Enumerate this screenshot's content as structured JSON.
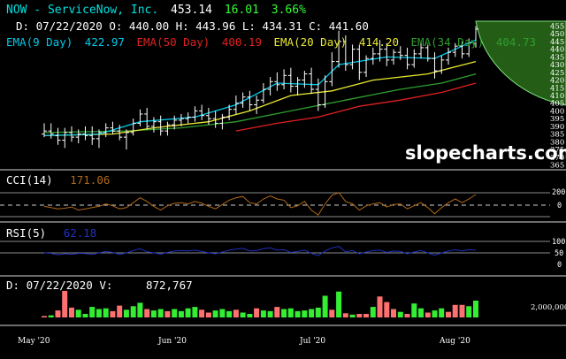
{
  "header": {
    "symbol": "NOW - ServiceNow, Inc.",
    "price": "453.14",
    "change": "16.01",
    "change_pct": "3.66%",
    "ohlc": "D: 07/22/2020 O: 440.00 H: 443.96 L: 434.31 C: 441.60",
    "ema9_label": "EMA(9 Day)",
    "ema9_value": "422.97",
    "ema50_label": "EMA(50 Day)",
    "ema50_value": "400.19",
    "ema20_label": "EMA(20 Day)",
    "ema20_value": "414.20",
    "ema34_label": "EMA(34 Day)",
    "ema34_value": "404.73"
  },
  "watermark": "slopecharts.com",
  "colors": {
    "background": "#000000",
    "symbol": "#00e0e0",
    "positive": "#33ff33",
    "candle": "#ffffff",
    "ema9": "#00c8e8",
    "ema20": "#e8e832",
    "ema34": "#2e9e2e",
    "ema50": "#e02020",
    "cci": "#b06818",
    "rsi": "#2030c0",
    "vol_up": "#33ee33",
    "vol_down": "#ff7070",
    "fib_fill": "#2a6e1a"
  },
  "cci_panel": {
    "label": "CCI(14)",
    "value": "171.06",
    "ticks": [
      "200",
      "0"
    ]
  },
  "rsi_panel": {
    "label": "RSI(5)",
    "value": "62.18",
    "ticks": [
      "100",
      "50",
      "0"
    ]
  },
  "volume_panel": {
    "label": "D: 07/22/2020 V:",
    "value": "872,767",
    "tick": "2,000,000"
  },
  "x_axis": {
    "labels": [
      "May '20",
      "Jun '20",
      "Jul '20",
      "Aug '20"
    ]
  },
  "chart_data": {
    "type": "candlestick",
    "price_axis": {
      "ticks": [
        "455",
        "450",
        "445",
        "440",
        "435",
        "430",
        "425",
        "420",
        "415",
        "410",
        "405",
        "400",
        "395",
        "390",
        "385",
        "380",
        "375",
        "370",
        "365"
      ],
      "ylim": [
        363,
        457
      ]
    },
    "bars": [
      {
        "o": 385,
        "h": 392,
        "l": 383,
        "c": 387
      },
      {
        "o": 387,
        "h": 392,
        "l": 382,
        "c": 385
      },
      {
        "o": 384,
        "h": 389,
        "l": 378,
        "c": 381
      },
      {
        "o": 381,
        "h": 389,
        "l": 376,
        "c": 386
      },
      {
        "o": 386,
        "h": 390,
        "l": 380,
        "c": 383
      },
      {
        "o": 383,
        "h": 388,
        "l": 379,
        "c": 385
      },
      {
        "o": 385,
        "h": 390,
        "l": 381,
        "c": 384
      },
      {
        "o": 384,
        "h": 390,
        "l": 378,
        "c": 382
      },
      {
        "o": 382,
        "h": 388,
        "l": 376,
        "c": 386
      },
      {
        "o": 386,
        "h": 392,
        "l": 383,
        "c": 389
      },
      {
        "o": 389,
        "h": 393,
        "l": 385,
        "c": 387
      },
      {
        "o": 387,
        "h": 391,
        "l": 381,
        "c": 383
      },
      {
        "o": 383,
        "h": 388,
        "l": 375,
        "c": 386
      },
      {
        "o": 386,
        "h": 395,
        "l": 384,
        "c": 392
      },
      {
        "o": 392,
        "h": 401,
        "l": 390,
        "c": 398
      },
      {
        "o": 398,
        "h": 402,
        "l": 388,
        "c": 390
      },
      {
        "o": 390,
        "h": 396,
        "l": 386,
        "c": 393
      },
      {
        "o": 393,
        "h": 397,
        "l": 384,
        "c": 387
      },
      {
        "o": 387,
        "h": 393,
        "l": 384,
        "c": 391
      },
      {
        "o": 391,
        "h": 397,
        "l": 388,
        "c": 394
      },
      {
        "o": 394,
        "h": 398,
        "l": 390,
        "c": 395
      },
      {
        "o": 395,
        "h": 399,
        "l": 392,
        "c": 396
      },
      {
        "o": 396,
        "h": 403,
        "l": 393,
        "c": 400
      },
      {
        "o": 400,
        "h": 404,
        "l": 394,
        "c": 397
      },
      {
        "o": 397,
        "h": 402,
        "l": 391,
        "c": 395
      },
      {
        "o": 395,
        "h": 400,
        "l": 389,
        "c": 392
      },
      {
        "o": 392,
        "h": 398,
        "l": 388,
        "c": 396
      },
      {
        "o": 396,
        "h": 404,
        "l": 394,
        "c": 401
      },
      {
        "o": 401,
        "h": 410,
        "l": 398,
        "c": 405
      },
      {
        "o": 405,
        "h": 412,
        "l": 402,
        "c": 409
      },
      {
        "o": 409,
        "h": 413,
        "l": 400,
        "c": 404
      },
      {
        "o": 404,
        "h": 410,
        "l": 398,
        "c": 407
      },
      {
        "o": 407,
        "h": 418,
        "l": 405,
        "c": 414
      },
      {
        "o": 414,
        "h": 422,
        "l": 410,
        "c": 419
      },
      {
        "o": 419,
        "h": 425,
        "l": 413,
        "c": 417
      },
      {
        "o": 417,
        "h": 427,
        "l": 414,
        "c": 423
      },
      {
        "o": 423,
        "h": 428,
        "l": 412,
        "c": 416
      },
      {
        "o": 416,
        "h": 422,
        "l": 410,
        "c": 420
      },
      {
        "o": 420,
        "h": 426,
        "l": 415,
        "c": 424
      },
      {
        "o": 424,
        "h": 428,
        "l": 411,
        "c": 414
      },
      {
        "o": 414,
        "h": 421,
        "l": 400,
        "c": 404
      },
      {
        "o": 404,
        "h": 423,
        "l": 402,
        "c": 419
      },
      {
        "o": 419,
        "h": 438,
        "l": 416,
        "c": 432
      },
      {
        "o": 432,
        "h": 452,
        "l": 428,
        "c": 445
      },
      {
        "o": 445,
        "h": 449,
        "l": 426,
        "c": 430
      },
      {
        "o": 430,
        "h": 443,
        "l": 427,
        "c": 440
      },
      {
        "o": 440,
        "h": 443,
        "l": 420,
        "c": 425
      },
      {
        "o": 425,
        "h": 436,
        "l": 422,
        "c": 434
      },
      {
        "o": 434,
        "h": 441,
        "l": 430,
        "c": 437
      },
      {
        "o": 437,
        "h": 446,
        "l": 432,
        "c": 440
      },
      {
        "o": 440,
        "h": 444,
        "l": 429,
        "c": 433
      },
      {
        "o": 433,
        "h": 440,
        "l": 430,
        "c": 438
      },
      {
        "o": 438,
        "h": 442,
        "l": 433,
        "c": 436
      },
      {
        "o": 436,
        "h": 441,
        "l": 427,
        "c": 430
      },
      {
        "o": 430,
        "h": 440,
        "l": 428,
        "c": 437
      },
      {
        "o": 437,
        "h": 444,
        "l": 434,
        "c": 441
      },
      {
        "o": 441,
        "h": 443,
        "l": 432,
        "c": 434
      },
      {
        "o": 434,
        "h": 438,
        "l": 421,
        "c": 426
      },
      {
        "o": 426,
        "h": 436,
        "l": 424,
        "c": 433
      },
      {
        "o": 433,
        "h": 441,
        "l": 430,
        "c": 438
      },
      {
        "o": 438,
        "h": 444,
        "l": 435,
        "c": 442
      },
      {
        "o": 442,
        "h": 445,
        "l": 434,
        "c": 437
      },
      {
        "o": 437,
        "h": 447,
        "l": 435,
        "c": 444
      },
      {
        "o": 444,
        "h": 455,
        "l": 441,
        "c": 453
      }
    ],
    "ema9": [
      [
        0,
        384
      ],
      [
        8,
        385
      ],
      [
        14,
        393
      ],
      [
        22,
        396
      ],
      [
        28,
        404
      ],
      [
        34,
        418
      ],
      [
        40,
        417
      ],
      [
        43,
        430
      ],
      [
        50,
        435
      ],
      [
        57,
        434
      ],
      [
        63,
        446
      ]
    ],
    "ema20": [
      [
        0,
        384
      ],
      [
        10,
        385
      ],
      [
        16,
        389
      ],
      [
        24,
        393
      ],
      [
        30,
        400
      ],
      [
        36,
        410
      ],
      [
        42,
        413
      ],
      [
        48,
        420
      ],
      [
        56,
        424
      ],
      [
        63,
        432
      ]
    ],
    "ema34": [
      [
        0,
        386
      ],
      [
        12,
        387
      ],
      [
        20,
        389
      ],
      [
        28,
        393
      ],
      [
        36,
        400
      ],
      [
        44,
        407
      ],
      [
        52,
        414
      ],
      [
        58,
        418
      ],
      [
        63,
        424
      ]
    ],
    "ema50": [
      [
        28,
        387
      ],
      [
        34,
        392
      ],
      [
        40,
        396
      ],
      [
        46,
        403
      ],
      [
        52,
        407
      ],
      [
        58,
        412
      ],
      [
        63,
        418
      ]
    ],
    "cci": [
      -20,
      -40,
      -60,
      -50,
      -30,
      -80,
      -60,
      -40,
      -20,
      20,
      -10,
      -60,
      -40,
      40,
      120,
      60,
      -20,
      -80,
      -10,
      30,
      40,
      20,
      60,
      30,
      -20,
      -60,
      10,
      80,
      120,
      140,
      40,
      20,
      100,
      150,
      100,
      80,
      -40,
      -10,
      60,
      -80,
      -160,
      20,
      160,
      200,
      60,
      20,
      -80,
      -10,
      20,
      40,
      -30,
      10,
      20,
      -60,
      -10,
      40,
      -40,
      -140,
      -40,
      40,
      100,
      40,
      100,
      171
    ],
    "rsi": [
      50,
      48,
      42,
      46,
      44,
      48,
      47,
      44,
      50,
      56,
      52,
      44,
      50,
      60,
      68,
      55,
      50,
      45,
      52,
      58,
      60,
      58,
      62,
      56,
      50,
      46,
      54,
      62,
      66,
      70,
      58,
      60,
      68,
      72,
      62,
      64,
      52,
      56,
      62,
      48,
      38,
      58,
      72,
      78,
      55,
      60,
      46,
      54,
      60,
      62,
      52,
      58,
      56,
      46,
      54,
      60,
      50,
      40,
      50,
      58,
      64,
      58,
      64,
      62
    ],
    "volume": [
      {
        "v": 200000,
        "up": false
      },
      {
        "v": 300000,
        "up": true
      },
      {
        "v": 1000000,
        "up": false
      },
      {
        "v": 3800000,
        "up": false
      },
      {
        "v": 1400000,
        "up": false
      },
      {
        "v": 1100000,
        "up": true
      },
      {
        "v": 500000,
        "up": true
      },
      {
        "v": 1500000,
        "up": true
      },
      {
        "v": 1200000,
        "up": true
      },
      {
        "v": 1300000,
        "up": true
      },
      {
        "v": 900000,
        "up": false
      },
      {
        "v": 1700000,
        "up": false
      },
      {
        "v": 1100000,
        "up": true
      },
      {
        "v": 1600000,
        "up": true
      },
      {
        "v": 2100000,
        "up": true
      },
      {
        "v": 1200000,
        "up": false
      },
      {
        "v": 1000000,
        "up": true
      },
      {
        "v": 1200000,
        "up": true
      },
      {
        "v": 900000,
        "up": false
      },
      {
        "v": 1200000,
        "up": true
      },
      {
        "v": 900000,
        "up": true
      },
      {
        "v": 1300000,
        "up": true
      },
      {
        "v": 1500000,
        "up": true
      },
      {
        "v": 1100000,
        "up": false
      },
      {
        "v": 700000,
        "up": false
      },
      {
        "v": 1000000,
        "up": true
      },
      {
        "v": 1200000,
        "up": true
      },
      {
        "v": 900000,
        "up": true
      },
      {
        "v": 1100000,
        "up": false
      },
      {
        "v": 700000,
        "up": true
      },
      {
        "v": 500000,
        "up": true
      },
      {
        "v": 1300000,
        "up": false
      },
      {
        "v": 1000000,
        "up": true
      },
      {
        "v": 900000,
        "up": true
      },
      {
        "v": 1500000,
        "up": false
      },
      {
        "v": 1200000,
        "up": true
      },
      {
        "v": 1300000,
        "up": true
      },
      {
        "v": 900000,
        "up": true
      },
      {
        "v": 1000000,
        "up": true
      },
      {
        "v": 1200000,
        "up": true
      },
      {
        "v": 1400000,
        "up": true
      },
      {
        "v": 3100000,
        "up": true
      },
      {
        "v": 1100000,
        "up": false
      },
      {
        "v": 3700000,
        "up": true
      },
      {
        "v": 600000,
        "up": false
      },
      {
        "v": 400000,
        "up": true
      },
      {
        "v": 500000,
        "up": false
      },
      {
        "v": 500000,
        "up": false
      },
      {
        "v": 1500000,
        "up": true
      },
      {
        "v": 3000000,
        "up": false
      },
      {
        "v": 2200000,
        "up": false
      },
      {
        "v": 1200000,
        "up": false
      },
      {
        "v": 800000,
        "up": true
      },
      {
        "v": 500000,
        "up": false
      },
      {
        "v": 2000000,
        "up": true
      },
      {
        "v": 1300000,
        "up": true
      },
      {
        "v": 700000,
        "up": false
      },
      {
        "v": 1000000,
        "up": true
      },
      {
        "v": 1300000,
        "up": true
      },
      {
        "v": 800000,
        "up": false
      },
      {
        "v": 1800000,
        "up": false
      },
      {
        "v": 1800000,
        "up": false
      },
      {
        "v": 1600000,
        "up": true
      },
      {
        "v": 2400000,
        "up": true
      }
    ],
    "volume_max": 4300000
  }
}
